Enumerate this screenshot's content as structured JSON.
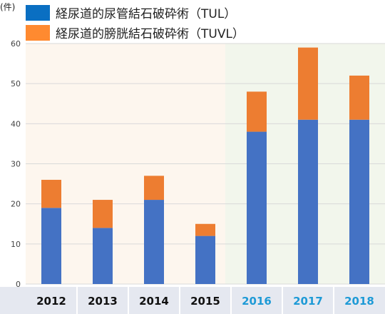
{
  "chart_data": {
    "type": "bar",
    "stacked": true,
    "y_unit": "(件)",
    "categories": [
      "2012",
      "2013",
      "2014",
      "2015",
      "2016",
      "2017",
      "2018"
    ],
    "series": [
      {
        "name": "経尿道的尿管結石破砕術（TUL）",
        "color": "#4472c4",
        "values": [
          19,
          14,
          21,
          12,
          38,
          41,
          41
        ]
      },
      {
        "name": "経尿道的膀胱結石破砕術（TUVL）",
        "color": "#ed7d31",
        "values": [
          7,
          7,
          6,
          3,
          10,
          18,
          11
        ]
      }
    ],
    "ylim": [
      0,
      60
    ],
    "yticks": [
      0,
      10,
      20,
      30,
      40,
      50,
      60
    ],
    "grid": true,
    "legend_position": "top-left",
    "legend_swatch_colors": [
      "#0a6fc2",
      "#ff8a30"
    ],
    "background_colors": {
      "period_1": "#fdf6ee",
      "period_2": "#f2f6ec"
    },
    "category_label_colors": {
      "period_1": "#111111",
      "period_2": "#1e9ad6"
    },
    "highlight_start_category": "2016",
    "axis_band_color": "#e5e8f0"
  }
}
